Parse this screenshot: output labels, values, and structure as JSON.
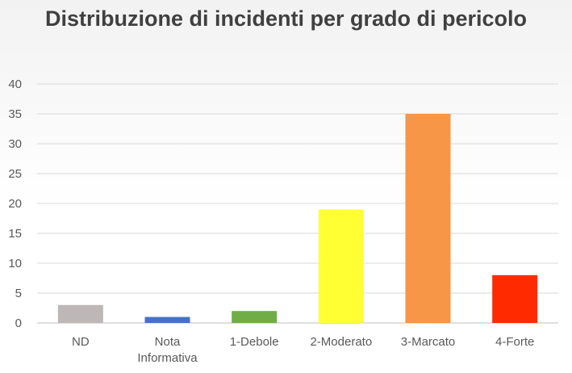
{
  "chart_data": {
    "type": "bar",
    "title": "Distribuzione di incidenti per grado di pericolo",
    "categories": [
      "ND",
      "Nota Informativa",
      "1-Debole",
      "2-Moderato",
      "3-Marcato",
      "4-Forte"
    ],
    "values": [
      3,
      1,
      2,
      19,
      35,
      8
    ],
    "colors": [
      "#bdb7b7",
      "#4472c4",
      "#70ad47",
      "#ffff33",
      "#f79646",
      "#ff2a00"
    ],
    "xlabel": "",
    "ylabel": "",
    "ylim": [
      0,
      40
    ],
    "yticks": [
      0,
      5,
      10,
      15,
      20,
      25,
      30,
      35,
      40
    ],
    "grid": true,
    "legend": "none"
  }
}
